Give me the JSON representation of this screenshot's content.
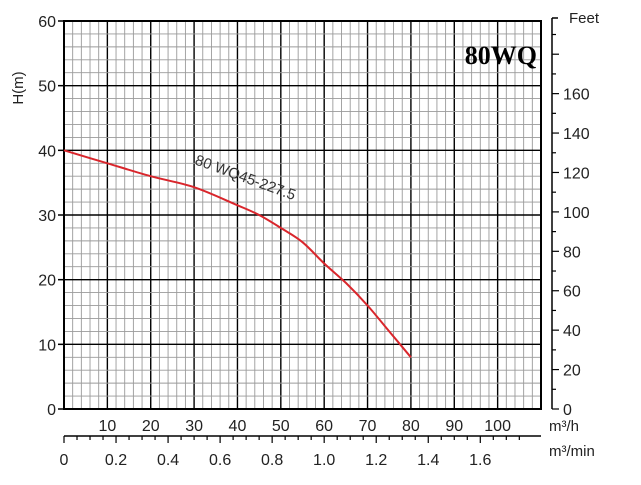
{
  "chart_data": {
    "type": "line",
    "title": "80WQ",
    "ylabel": "H(m)",
    "ylabel_right": "Feet",
    "xlabel_flow_m3h": "m³/h",
    "xlabel_flow_m3min": "m³/min",
    "ylim": [
      0,
      60
    ],
    "xlim_m3h": [
      0,
      110
    ],
    "y_ticks": [
      0,
      10,
      20,
      30,
      40,
      50,
      60
    ],
    "feet_ticks": [
      0,
      20,
      40,
      60,
      80,
      100,
      120,
      140,
      160
    ],
    "feet_tick_labels": [
      "0",
      "20",
      "40",
      "60",
      "80",
      "100",
      "120",
      "140",
      "160"
    ],
    "feet_top_label": "Feet",
    "x_ticks_m3h": [
      10,
      20,
      30,
      40,
      50,
      60,
      70,
      80,
      90,
      100
    ],
    "x_tick_labels_m3h": [
      "10",
      "20",
      "30",
      "40",
      "50",
      "60",
      "70",
      "80",
      "90",
      "100"
    ],
    "x_ticks_m3min": [
      0,
      0.2,
      0.4,
      0.6,
      0.8,
      1.0,
      1.2,
      1.4,
      1.6
    ],
    "x_tick_labels_m3min": [
      "0",
      "0.2",
      "0.4",
      "0.6",
      "0.8",
      "1.0",
      "1.2",
      "1.4",
      "1.6"
    ],
    "grid": true,
    "series": [
      {
        "name": "80 WQ45-227.5",
        "color": "#d9262c",
        "x": [
          0,
          10,
          20,
          30,
          40,
          45,
          50,
          55,
          60,
          65,
          70,
          75,
          80
        ],
        "y": [
          40,
          38,
          36,
          34.3,
          31.5,
          30,
          28,
          25.8,
          22.5,
          19.5,
          16,
          12,
          8
        ]
      }
    ]
  }
}
